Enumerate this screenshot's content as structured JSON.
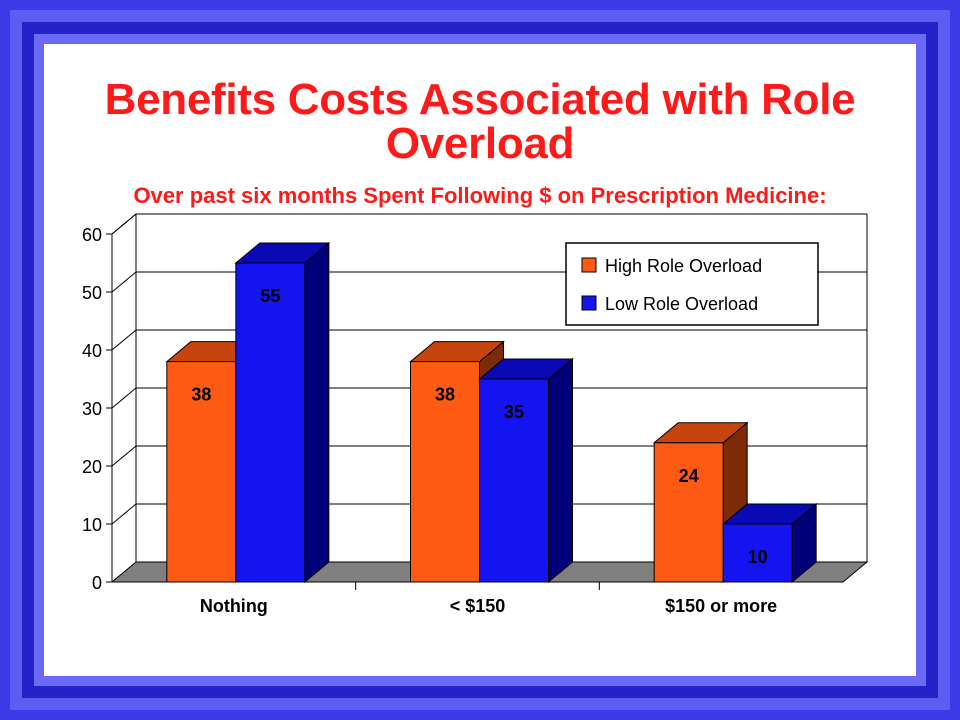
{
  "slide": {
    "title_line1": "Benefits Costs Associated with Role",
    "title_line2": "Overload",
    "subtitle": "Over past six months Spent Following $ on Prescription Medicine:"
  },
  "chart_data": {
    "type": "bar",
    "title": "Benefits Costs Associated with Role Overload",
    "subtitle": "Over past six months Spent Following $ on Prescription Medicine:",
    "categories": [
      "Nothing",
      "< $150",
      "$150 or more"
    ],
    "series": [
      {
        "name": "High Role Overload",
        "values": [
          38,
          38,
          24
        ],
        "color": "#ff5a14",
        "top_color": "#c8440e",
        "side_color": "#7c2a08"
      },
      {
        "name": "Low Role Overload",
        "values": [
          55,
          35,
          10
        ],
        "color": "#1414f0",
        "top_color": "#0a0ab4",
        "side_color": "#000078"
      }
    ],
    "data_labels": [
      [
        "38",
        "38",
        "24"
      ],
      [
        "55",
        "35",
        "10"
      ]
    ],
    "ylim": [
      0,
      60
    ],
    "yticks": [
      "0",
      "10",
      "20",
      "30",
      "40",
      "50",
      "60"
    ],
    "grid": true,
    "legend_position": "top-right",
    "three_d": true,
    "floor_color": "#808080"
  }
}
